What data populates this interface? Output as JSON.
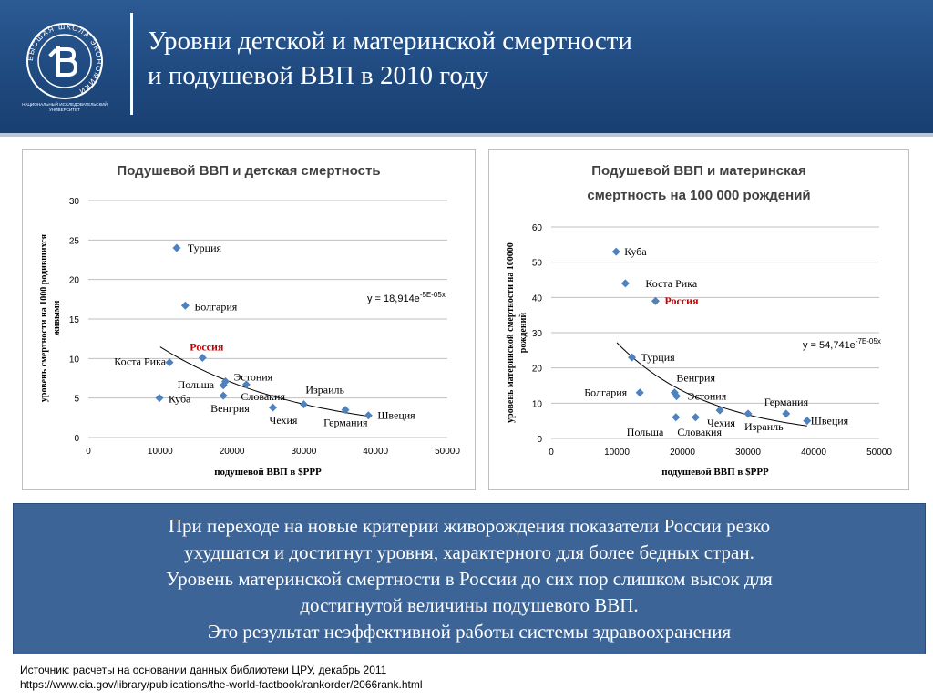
{
  "header": {
    "title_lines": [
      "Уровни детской и материнской смертности",
      "и подушевой ВВП  в 2010 году"
    ],
    "logo": {
      "ring_text": "ВЫСШАЯ ШКОЛА ЭКОНОМИКИ",
      "caption_lines": [
        "НАЦИОНАЛЬНЫЙ ИССЛЕДОВАТЕЛЬСКИЙ",
        "УНИВЕРСИТЕТ"
      ]
    }
  },
  "chart_data": [
    {
      "type": "scatter",
      "title": [
        "Подушевой ВВП и детская смертность"
      ],
      "xlabel": "подушевой ВВП в $PPP",
      "ylabel": [
        "уровень смертности на 1000 родившихся",
        "живыми"
      ],
      "xlim": [
        0,
        50000
      ],
      "ylim": [
        0,
        30
      ],
      "xticks": [
        0,
        10000,
        20000,
        30000,
        40000,
        50000
      ],
      "xtick_labels": [
        "0",
        "10000",
        "20000",
        "30000",
        "40000",
        "50000"
      ],
      "yticks": [
        0,
        5,
        10,
        15,
        20,
        25,
        30
      ],
      "ytick_labels": [
        "0",
        "5",
        "10",
        "15",
        "20",
        "25",
        "30"
      ],
      "grid": "horizontal",
      "equation": {
        "base": "y = 18,914e",
        "exponent": "-5E-05x"
      },
      "trendline": {
        "a": 18.914,
        "b": -5e-05,
        "x_from": 10000,
        "x_to": 39000
      },
      "marker_color": "#4f81bd",
      "highlight_color": "#c00000",
      "points": [
        {
          "label": "Турция",
          "x": 12300,
          "y": 24.0
        },
        {
          "label": "Болгария",
          "x": 13500,
          "y": 16.7
        },
        {
          "label": "Россия",
          "x": 15900,
          "y": 10.1,
          "highlight": true
        },
        {
          "label": "Коста Рика",
          "x": 11300,
          "y": 9.5
        },
        {
          "label": "Куба",
          "x": 9900,
          "y": 5.0
        },
        {
          "label": "Польша",
          "x": 18800,
          "y": 6.6
        },
        {
          "label": "Эстония",
          "x": 19100,
          "y": 7.1
        },
        {
          "label": "Венгрия",
          "x": 18800,
          "y": 5.3
        },
        {
          "label": "Словакия",
          "x": 22000,
          "y": 6.7
        },
        {
          "label": "Чехия",
          "x": 25700,
          "y": 3.8
        },
        {
          "label": "Израиль",
          "x": 30000,
          "y": 4.2
        },
        {
          "label": "Германия",
          "x": 35800,
          "y": 3.5
        },
        {
          "label": "Швеция",
          "x": 39000,
          "y": 2.8
        }
      ]
    },
    {
      "type": "scatter",
      "title": [
        "Подушевой ВВП и материнская",
        "смертность на 100 000 рождений"
      ],
      "xlabel": "подушевой ВВП в $PPP",
      "ylabel": [
        "уровень материнской смертности на 100000",
        "рождений"
      ],
      "xlim": [
        0,
        50000
      ],
      "ylim": [
        0,
        60
      ],
      "xticks": [
        0,
        10000,
        20000,
        30000,
        40000,
        50000
      ],
      "xtick_labels": [
        "0",
        "10000",
        "20000",
        "30000",
        "40000",
        "50000"
      ],
      "yticks": [
        0,
        10,
        20,
        30,
        40,
        50,
        60
      ],
      "ytick_labels": [
        "0",
        "10",
        "20",
        "30",
        "40",
        "50",
        "60"
      ],
      "grid": "horizontal",
      "equation": {
        "base": "y = 54,741e",
        "exponent": "-7E-05x"
      },
      "trendline": {
        "a": 54.741,
        "b": -7e-05,
        "x_from": 10000,
        "x_to": 39000
      },
      "marker_color": "#4f81bd",
      "highlight_color": "#c00000",
      "points": [
        {
          "label": "Куба",
          "x": 9900,
          "y": 53
        },
        {
          "label": "Коста Рика",
          "x": 11300,
          "y": 44
        },
        {
          "label": "Россия",
          "x": 15900,
          "y": 39,
          "highlight": true
        },
        {
          "label": "Турция",
          "x": 12300,
          "y": 23
        },
        {
          "label": "Венгрия",
          "x": 18800,
          "y": 13
        },
        {
          "label": "Эстония",
          "x": 19100,
          "y": 12
        },
        {
          "label": "Болгария",
          "x": 13500,
          "y": 13
        },
        {
          "label": "Польша",
          "x": 19000,
          "y": 6
        },
        {
          "label": "Словакия",
          "x": 22000,
          "y": 6
        },
        {
          "label": "Чехия",
          "x": 25700,
          "y": 8
        },
        {
          "label": "Израиль",
          "x": 30000,
          "y": 7
        },
        {
          "label": "Германия",
          "x": 35800,
          "y": 7
        },
        {
          "label": "Швеция",
          "x": 39000,
          "y": 5
        }
      ]
    }
  ],
  "summary": {
    "lines": [
      "При  переходе на новые критерии живорождения показатели России резко",
      "ухудшатся и достигнут уровня, характерного для  более бедных стран.",
      "Уровень материнской смертности в России до сих пор слишком высок для",
      "достигнутой величины подушевого ВВП.",
      "Это результат неэффективной работы системы здравоохранения"
    ]
  },
  "source": {
    "lines": [
      "Источник: расчеты на основании данных библиотеки ЦРУ, декабрь  2011",
      "https://www.cia.gov/library/publications/the-world-factbook/rankorder/2066rank.html"
    ]
  }
}
